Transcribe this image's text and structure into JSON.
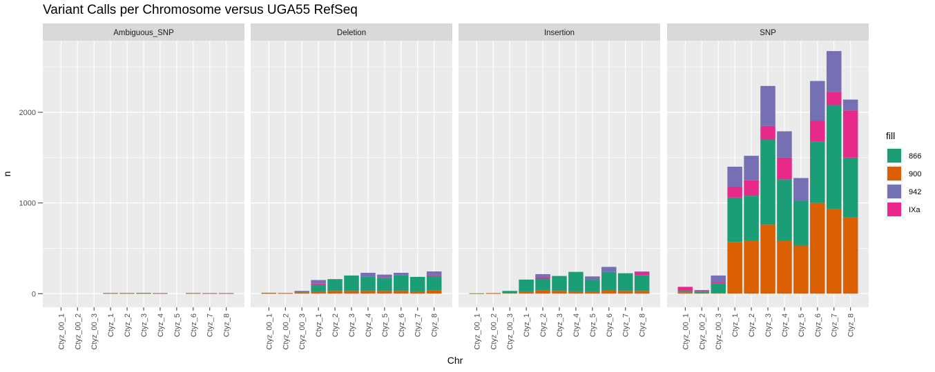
{
  "chart_data": {
    "type": "bar",
    "stacked": true,
    "title": "Variant Calls per Chromosome versus UGA55 RefSeq",
    "xlabel": "Chr",
    "ylabel": "n",
    "ylim": [
      -150,
      2790
    ],
    "yticks": [
      0,
      1000,
      2000
    ],
    "grid": true,
    "legend": {
      "title": "fill",
      "position": "right"
    },
    "categories": [
      "Ctyz_00_1",
      "Ctyz_00_2",
      "Ctyz_00_3",
      "Ctyz_1",
      "Ctyz_2",
      "Ctyz_3",
      "Ctyz_4",
      "Ctyz_5",
      "Ctyz_6",
      "Ctyz_7",
      "Ctyz_8"
    ],
    "series_order": [
      "900",
      "866",
      "IXa",
      "942"
    ],
    "colors": {
      "866": "#1B9E77",
      "900": "#D95F02",
      "942": "#7570B3",
      "IXa": "#E7298A"
    },
    "legend_order": [
      "866",
      "900",
      "942",
      "IXa"
    ],
    "facets": [
      {
        "label": "Ambiguous_SNP",
        "series": [
          {
            "name": "900",
            "values": [
              0,
              0,
              0,
              3,
              3,
              3,
              2,
              0,
              3,
              2,
              2
            ]
          },
          {
            "name": "866",
            "values": [
              0,
              0,
              0,
              2,
              2,
              2,
              2,
              0,
              2,
              2,
              2
            ]
          },
          {
            "name": "IXa",
            "values": [
              0,
              0,
              0,
              1,
              1,
              2,
              1,
              0,
              1,
              1,
              1
            ]
          },
          {
            "name": "942",
            "values": [
              0,
              0,
              0,
              1,
              1,
              1,
              1,
              0,
              1,
              1,
              1
            ]
          }
        ]
      },
      {
        "label": "Deletion",
        "series": [
          {
            "name": "900",
            "values": [
              3,
              3,
              15,
              25,
              30,
              30,
              30,
              30,
              30,
              25,
              35
            ]
          },
          {
            "name": "866",
            "values": [
              7,
              5,
              10,
              75,
              130,
              170,
              160,
              145,
              175,
              160,
              160
            ]
          },
          {
            "name": "IXa",
            "values": [
              0,
              0,
              0,
              10,
              0,
              0,
              0,
              5,
              0,
              0,
              10
            ]
          },
          {
            "name": "942",
            "values": [
              0,
              0,
              5,
              40,
              0,
              0,
              40,
              30,
              25,
              0,
              40
            ]
          }
        ]
      },
      {
        "label": "Insertion",
        "series": [
          {
            "name": "900",
            "values": [
              1,
              2,
              5,
              25,
              35,
              30,
              25,
              25,
              40,
              30,
              30
            ]
          },
          {
            "name": "866",
            "values": [
              3,
              4,
              25,
              130,
              130,
              165,
              215,
              125,
              200,
              195,
              175
            ]
          },
          {
            "name": "IXa",
            "values": [
              0,
              0,
              0,
              0,
              15,
              0,
              0,
              0,
              0,
              0,
              35
            ]
          },
          {
            "name": "942",
            "values": [
              0,
              0,
              0,
              0,
              35,
              0,
              0,
              40,
              55,
              0,
              5
            ]
          }
        ]
      },
      {
        "label": "SNP",
        "series": [
          {
            "name": "900",
            "values": [
              15,
              10,
              5,
              570,
              580,
              760,
              580,
              530,
              1000,
              930,
              840
            ]
          },
          {
            "name": "866",
            "values": [
              15,
              10,
              110,
              490,
              500,
              940,
              680,
              490,
              680,
              1150,
              660
            ]
          },
          {
            "name": "IXa",
            "values": [
              45,
              10,
              15,
              120,
              170,
              150,
              240,
              0,
              225,
              145,
              520
            ]
          },
          {
            "name": "942",
            "values": [
              0,
              10,
              70,
              220,
              270,
              440,
              290,
              255,
              440,
              450,
              120
            ]
          }
        ]
      }
    ]
  }
}
